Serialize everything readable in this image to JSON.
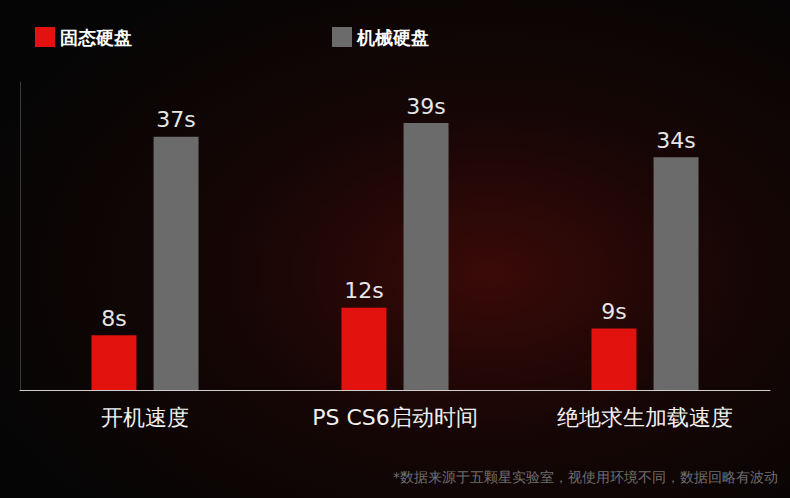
{
  "chart_data": {
    "type": "bar",
    "categories": [
      "开机速度",
      "PS CS6启动时间",
      "绝地求生加载速度"
    ],
    "series": [
      {
        "name": "固态硬盘",
        "color": "#e2120f",
        "values": [
          8,
          12,
          9
        ],
        "value_labels": [
          "8s",
          "12s",
          "9s"
        ]
      },
      {
        "name": "机械硬盘",
        "color": "#6b6b6b",
        "values": [
          37,
          39,
          34
        ],
        "value_labels": [
          "37s",
          "39s",
          "34s"
        ]
      }
    ],
    "ylim": [
      0,
      45
    ],
    "grid": false,
    "legend": "top-left",
    "data_labels": true,
    "tick_labels": "x",
    "annotation": "*数据来源于五颗星实验室，视使用环境不同，数据回略有波动"
  }
}
